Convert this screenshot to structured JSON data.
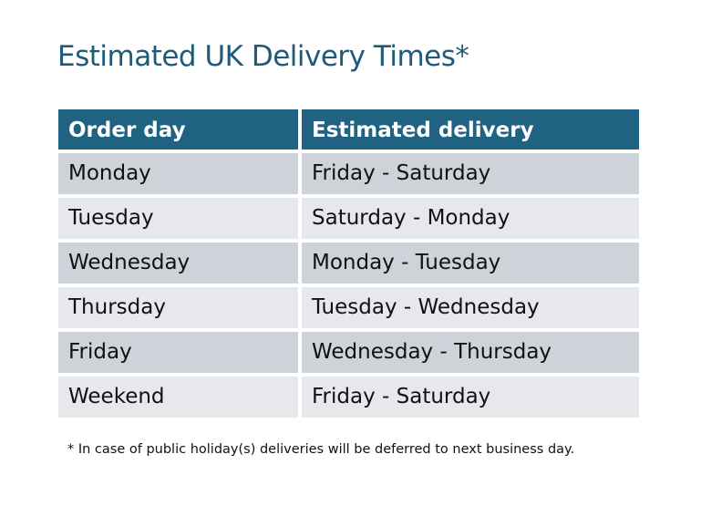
{
  "title": "Estimated UK Delivery Times*",
  "table": {
    "headers": [
      "Order day",
      "Estimated delivery"
    ],
    "rows": [
      [
        "Monday",
        "Friday - Saturday"
      ],
      [
        "Tuesday",
        "Saturday - Monday"
      ],
      [
        "Wednesday",
        "Monday - Tuesday"
      ],
      [
        "Thursday",
        "Tuesday - Wednesday"
      ],
      [
        "Friday",
        "Wednesday - Thursday"
      ],
      [
        "Weekend",
        "Friday - Saturday"
      ]
    ]
  },
  "footnote": "* In case of public holiday(s) deliveries will be deferred to next business day.",
  "colors": {
    "header": "#1f6282",
    "title": "#1f5a78",
    "row_dark": "#ced2d9",
    "row_light": "#e6e8eb"
  }
}
